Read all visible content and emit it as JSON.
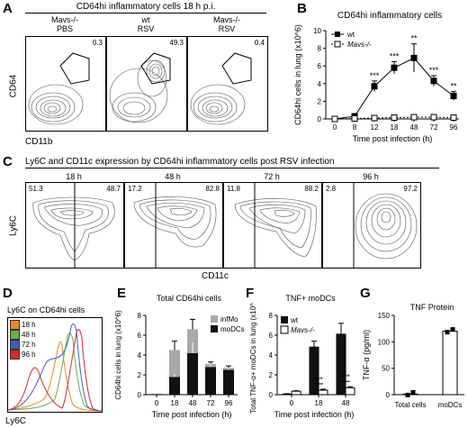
{
  "panelA": {
    "letter": "A",
    "title": "CD64hi inflammatory cells 18 h p.i.",
    "ylabel": "CD64",
    "xlabel": "CD11b",
    "plots": [
      {
        "genotype": "Mavs-/-",
        "treatment": "PBS",
        "percent": "0.3"
      },
      {
        "genotype": "wt",
        "treatment": "RSV",
        "percent": "49.3"
      },
      {
        "genotype": "Mavs-/-",
        "treatment": "RSV",
        "percent": "0.4"
      }
    ]
  },
  "panelB": {
    "letter": "B",
    "title": "CD64hi inflammatory cells",
    "ylabel": "CD64hi cells in lung (x10^6)",
    "xlabel": "Time post infection (h)",
    "legend": [
      "wt",
      "Mavs-/-"
    ]
  },
  "panelC": {
    "letter": "C",
    "title": "Ly6C and CD11c expression by CD64hi inflammatory cells post RSV infection",
    "ylabel": "Ly6C",
    "xlabel": "CD11c",
    "plots": [
      {
        "time": "18 h",
        "left": "51.3",
        "right": "48.7"
      },
      {
        "time": "48 h",
        "left": "17.2",
        "right": "82.8"
      },
      {
        "time": "72 h",
        "left": "11.8",
        "right": "88.2"
      },
      {
        "time": "96 h",
        "left": "2.8",
        "right": "97.2"
      }
    ]
  },
  "panelD": {
    "letter": "D",
    "title": "Ly6C on CD64hi cells",
    "xlabel": "Ly6C",
    "legend": [
      {
        "label": "18 h",
        "color": "#e8872b"
      },
      {
        "label": "48 h",
        "color": "#6fae3f"
      },
      {
        "label": "72 h",
        "color": "#3b5fb5"
      },
      {
        "label": "96 h",
        "color": "#d8262b"
      }
    ]
  },
  "panelE": {
    "letter": "E",
    "title": "Total CD64hi cells",
    "ylabel": "CD64hi cells in lung (x10^6)",
    "xlabel": "Time post infection (h)",
    "legend": [
      "infMo",
      "moDCs"
    ]
  },
  "panelF": {
    "letter": "F",
    "title": "TNF+ moDCs",
    "ylabel": "Total TNF-α+ moDCs in lung (x10^4)",
    "xlabel": "Time post infection (h)",
    "legend": [
      "wt",
      "Mavs-/-"
    ]
  },
  "panelG": {
    "letter": "G",
    "title": "TNF Protein",
    "ylabel": "TNF-α (pg/ml)"
  },
  "chart_data": [
    {
      "panel": "B",
      "type": "line",
      "title": "CD64hi inflammatory cells",
      "xlabel": "Time post infection (h)",
      "ylabel": "CD64hi cells in lung (x10^6)",
      "categories": [
        "0",
        "8",
        "12",
        "18",
        "48",
        "72",
        "96"
      ],
      "ylim": [
        0,
        10
      ],
      "yticks": [
        0,
        2,
        4,
        6,
        8,
        10
      ],
      "series": [
        {
          "name": "wt",
          "values": [
            0,
            0.3,
            3.7,
            5.8,
            6.9,
            4.3,
            2.6
          ],
          "err": [
            0.1,
            0.3,
            0.6,
            0.7,
            1.6,
            0.6,
            0.5
          ]
        },
        {
          "name": "Mavs-/-",
          "values": [
            0,
            0.05,
            0.1,
            0.15,
            0.2,
            0.2,
            0.15
          ],
          "err": [
            0.05,
            0.05,
            0.1,
            0.1,
            0.1,
            0.1,
            0.1
          ]
        }
      ],
      "annotations": [
        {
          "category": "12",
          "text": "***"
        },
        {
          "category": "18",
          "text": "***"
        },
        {
          "category": "48",
          "text": "**"
        },
        {
          "category": "72",
          "text": "***"
        },
        {
          "category": "96",
          "text": "**"
        }
      ]
    },
    {
      "panel": "E",
      "type": "bar",
      "title": "Total CD64hi cells",
      "xlabel": "Time post infection (h)",
      "ylabel": "CD64hi cells in lung (x10^6)",
      "categories": [
        "0",
        "18",
        "48",
        "72",
        "96"
      ],
      "ylim": [
        0,
        8
      ],
      "yticks": [
        0,
        2,
        4,
        6,
        8
      ],
      "stacked": true,
      "series": [
        {
          "name": "moDCs",
          "values": [
            0.05,
            1.8,
            4.2,
            2.8,
            2.5
          ],
          "err": [
            0,
            0.3,
            1.1,
            0.3,
            0.3
          ]
        },
        {
          "name": "infMo",
          "values": [
            0.05,
            2.7,
            2.4,
            0.3,
            0.2
          ],
          "err": [
            0,
            0.9,
            1.0,
            0.2,
            0.2
          ]
        }
      ]
    },
    {
      "panel": "F",
      "type": "bar",
      "title": "TNF+ moDCs",
      "xlabel": "Time post infection (h)",
      "ylabel": "Total TNF-α+ moDCs in lung (x10^4)",
      "categories": [
        "0",
        "18",
        "48"
      ],
      "ylim": [
        0,
        8
      ],
      "yticks": [
        0,
        2,
        4,
        6,
        8
      ],
      "series": [
        {
          "name": "wt",
          "values": [
            0.05,
            4.8,
            6.1
          ],
          "err": [
            0.05,
            0.6,
            1.1
          ]
        },
        {
          "name": "Mavs-/-",
          "values": [
            0.35,
            0.45,
            0.7
          ],
          "err": [
            0.05,
            0.1,
            0.1
          ]
        }
      ],
      "annotations": [
        {
          "category": "18",
          "text": "***"
        },
        {
          "category": "48",
          "text": "***"
        }
      ]
    },
    {
      "panel": "G",
      "type": "bar",
      "title": "TNF Protein",
      "ylabel": "TNF-α (pg/ml)",
      "categories": [
        "Total cells",
        "moDCs"
      ],
      "ylim": [
        0,
        150
      ],
      "yticks": [
        0,
        50,
        100,
        150
      ],
      "series": [
        {
          "values": [
            1,
            120
          ]
        }
      ]
    }
  ]
}
